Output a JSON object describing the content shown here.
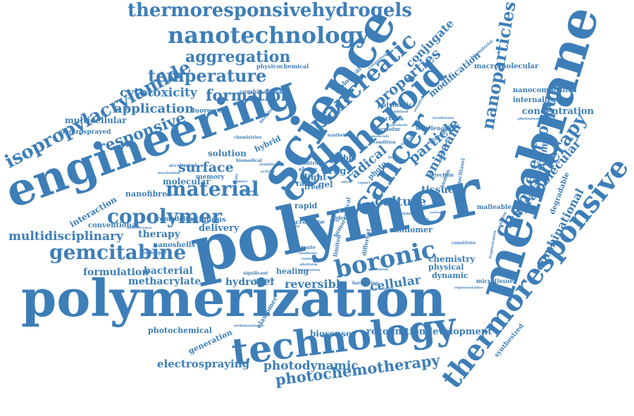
{
  "colors": {
    "text": "#3d7eb8",
    "background": "#ffffff"
  },
  "words": [
    {
      "text": "polymerization"
    },
    {
      "text": "polymer"
    },
    {
      "text": "membrane"
    },
    {
      "text": "engineering"
    },
    {
      "text": "science"
    },
    {
      "text": "technology"
    },
    {
      "text": "thermoresponsive"
    },
    {
      "text": "spheroid"
    },
    {
      "text": "cell"
    },
    {
      "text": "nanotechnology"
    },
    {
      "text": "thermoresponsivehydrogels"
    },
    {
      "text": "cancer"
    },
    {
      "text": "isopropylacrylamide"
    },
    {
      "text": "pancreatic"
    },
    {
      "text": "nanoparticles"
    },
    {
      "text": "chemotherapy"
    },
    {
      "text": "boronic"
    },
    {
      "text": "copolymer"
    },
    {
      "text": "material"
    },
    {
      "text": "gemcitabine"
    },
    {
      "text": "temperature"
    },
    {
      "text": "responsive"
    },
    {
      "text": "aggregation"
    },
    {
      "text": "formation"
    },
    {
      "text": "photochemotherapy"
    },
    {
      "text": "supramolecular"
    },
    {
      "text": "properties"
    },
    {
      "text": "electrospun"
    },
    {
      "text": "radical"
    },
    {
      "text": "particle"
    },
    {
      "text": "culture"
    },
    {
      "text": "surface"
    },
    {
      "text": "photodynamic"
    },
    {
      "text": "conjugate"
    },
    {
      "text": "pnipaam"
    },
    {
      "text": "combinational"
    },
    {
      "text": "multidisciplinary"
    },
    {
      "text": "application"
    },
    {
      "text": "cytotoxicity"
    },
    {
      "text": "electrospraying"
    },
    {
      "text": "reversible"
    },
    {
      "text": "cellular"
    },
    {
      "text": "formulation"
    },
    {
      "text": "bacterial"
    },
    {
      "text": "hydrogel"
    },
    {
      "text": "methacrylate"
    },
    {
      "text": "therapy"
    },
    {
      "text": "delivery"
    },
    {
      "text": "concentration"
    },
    {
      "text": "modification"
    },
    {
      "text": "multicellular"
    },
    {
      "text": "nanoscience"
    },
    {
      "text": "molecular"
    },
    {
      "text": "recognition"
    },
    {
      "text": "development"
    },
    {
      "text": "biosensor"
    },
    {
      "text": "tissue"
    },
    {
      "text": "drug"
    },
    {
      "text": "gel"
    },
    {
      "text": "light"
    },
    {
      "text": "chemistry"
    },
    {
      "text": "physical"
    },
    {
      "text": "dynamic"
    },
    {
      "text": "macromolecular"
    },
    {
      "text": "nanocomposites"
    },
    {
      "text": "internalization"
    },
    {
      "text": "degradable"
    },
    {
      "text": "photochemical"
    },
    {
      "text": "generation"
    },
    {
      "text": "solution"
    },
    {
      "text": "interaction"
    },
    {
      "text": "nanofibres"
    },
    {
      "text": "conventional"
    },
    {
      "text": "nanoshells"
    },
    {
      "text": "stimulus"
    },
    {
      "text": "remodeling"
    },
    {
      "text": "hybrid"
    },
    {
      "text": "visible"
    },
    {
      "text": "monomer"
    },
    {
      "text": "healing"
    },
    {
      "text": "elastomer"
    },
    {
      "text": "synthesized"
    },
    {
      "text": "fluorescent"
    },
    {
      "text": "electrosprayed"
    },
    {
      "text": "polymeric"
    },
    {
      "text": "bacteria"
    },
    {
      "text": "biological"
    },
    {
      "text": "combinatorial"
    },
    {
      "text": "physicochemical"
    },
    {
      "text": "microtissue"
    },
    {
      "text": "malleable"
    },
    {
      "text": "wavelength"
    },
    {
      "text": "memory"
    },
    {
      "text": "rapid"
    },
    {
      "text": "raft"
    },
    {
      "text": "photo"
    },
    {
      "text": "free"
    },
    {
      "text": "shape"
    },
    {
      "text": "control"
    },
    {
      "text": "carmofur"
    },
    {
      "text": "condition"
    },
    {
      "text": "synergistic"
    },
    {
      "text": "potential"
    },
    {
      "text": "biofilm"
    },
    {
      "text": "paclitaxel"
    },
    {
      "text": "detection"
    },
    {
      "text": "cross"
    },
    {
      "text": "line"
    },
    {
      "text": "alder"
    },
    {
      "text": "critical"
    },
    {
      "text": "different"
    },
    {
      "text": "limited"
    },
    {
      "text": "tumor"
    },
    {
      "text": "minute"
    },
    {
      "text": "significant"
    },
    {
      "text": "prolonged"
    },
    {
      "text": "harnessing"
    },
    {
      "text": "degradation"
    },
    {
      "text": "representative"
    },
    {
      "text": "wedemonstrate"
    },
    {
      "text": "accelerated"
    },
    {
      "text": "biomedical"
    },
    {
      "text": "chemistries"
    },
    {
      "text": "mechanism"
    },
    {
      "text": "fluorescence"
    },
    {
      "text": "intensity"
    },
    {
      "text": "healable"
    },
    {
      "text": "synthetic"
    },
    {
      "text": "combined"
    },
    {
      "text": "hydrolysis"
    },
    {
      "text": "biomaterial"
    },
    {
      "text": "comparison"
    },
    {
      "text": "irradiation"
    },
    {
      "text": "photosensitiser"
    },
    {
      "text": "combining"
    },
    {
      "text": "fragmentation"
    },
    {
      "text": "constitute"
    },
    {
      "text": "exhibit"
    },
    {
      "text": "antitumor"
    },
    {
      "text": "molecule"
    },
    {
      "text": "treatment"
    },
    {
      "text": "ultra"
    },
    {
      "text": "relevant"
    },
    {
      "text": "manner"
    },
    {
      "text": "activity"
    },
    {
      "text": "graft"
    },
    {
      "text": "system"
    },
    {
      "text": "platform"
    },
    {
      "text": "integration"
    },
    {
      "text": "synthesis"
    },
    {
      "text": "photolysis"
    },
    {
      "text": "performance"
    },
    {
      "text": "self"
    },
    {
      "text": "dual"
    },
    {
      "text": "report"
    },
    {
      "text": "diels"
    },
    {
      "text": "contact"
    },
    {
      "text": "stability"
    },
    {
      "text": "polyelectrolyte"
    },
    {
      "text": "blend"
    },
    {
      "text": "sensitive"
    }
  ]
}
